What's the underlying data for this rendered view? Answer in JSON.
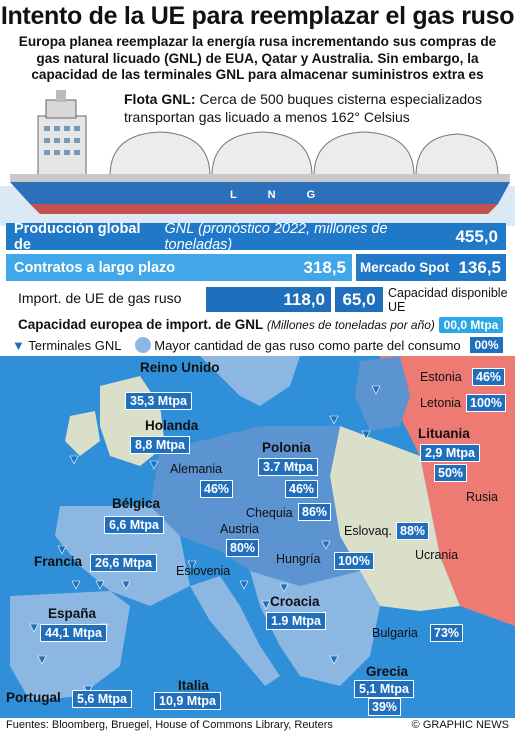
{
  "title": "Intento de la UE para reemplazar el gas ruso",
  "subtitle": "Europa planea reemplazar la energía rusa incrementando sus compras de gas natural licuado (GNL) de EUA, Qatar y Australia. Sin embargo, la capacidad de las terminales GNL para almacenar suministros extra es limitada",
  "fleet": {
    "label": "Flota GNL:",
    "text": "Cerca de 500 buques cisterna especializados transportan gas licuado a menos 162° Celsius",
    "ship_hull_text": "L N G"
  },
  "production": {
    "label": "Producción global de",
    "label_italic": "GNL (pronóstico 2022, millones de toneladas)",
    "value": "455,0"
  },
  "contracts": {
    "long_term_label": "Contratos a largo plazo",
    "long_term_value": "318,5",
    "spot_label": "Mercado Spot",
    "spot_value": "136,5"
  },
  "eu_import": {
    "label": "Import. de UE de gas ruso",
    "value": "118,0",
    "available_value": "65,0",
    "available_label": "Capacidad disponible UE"
  },
  "legend": {
    "title": "Capacidad europea de import. de GNL",
    "title_unit": "(Millones de toneladas por año)",
    "capacity_sample": "00,0 Mtpa",
    "terminals_label": "Terminales GNL",
    "share_label": "Mayor cantidad de gas ruso como parte del consumo",
    "share_sample": "00%"
  },
  "countries": {
    "uk": {
      "name": "Reino Unido",
      "capacity": "35,3 Mtpa"
    },
    "netherlands": {
      "name": "Holanda",
      "capacity": "8,8 Mtpa"
    },
    "belgium": {
      "name": "Bélgica",
      "capacity": "6,6 Mtpa"
    },
    "france": {
      "name": "Francia",
      "capacity": "26,6 Mtpa"
    },
    "spain": {
      "name": "España",
      "capacity": "44,1 Mtpa"
    },
    "portugal": {
      "name": "Portugal",
      "capacity": "5,6 Mtpa"
    },
    "italy": {
      "name": "Italia",
      "capacity": "10,9 Mtpa"
    },
    "germany": {
      "name": "Alemania",
      "share": "46%"
    },
    "poland": {
      "name": "Polonia",
      "capacity": "3.7 Mtpa",
      "share": "46%"
    },
    "czechia": {
      "name": "Chequia",
      "share": "86%"
    },
    "austria": {
      "name": "Austria",
      "share": "80%"
    },
    "slovakia": {
      "name": "Eslovaq.",
      "share": "88%"
    },
    "hungary": {
      "name": "Hungría",
      "share": "100%"
    },
    "slovenia": {
      "name": "Eslovenia"
    },
    "croatia": {
      "name": "Croacia",
      "capacity": "1.9 Mtpa"
    },
    "bulgaria": {
      "name": "Bulgaria",
      "share": "73%"
    },
    "greece": {
      "name": "Grecia",
      "capacity": "5,1 Mtpa",
      "share": "39%"
    },
    "estonia": {
      "name": "Estonia",
      "share": "46%"
    },
    "latvia": {
      "name": "Letonia",
      "share": "100%"
    },
    "lithuania": {
      "name": "Lituania",
      "capacity": "2,9 Mtpa",
      "share": "50%"
    },
    "ukraine": {
      "name": "Ucrania"
    },
    "russia": {
      "name": "Rusia"
    }
  },
  "footer": {
    "sources": "Fuentes: Bloomberg, Bruegel, House of Commons Library, Reuters",
    "credit": "© GRAPHIC NEWS"
  },
  "colors": {
    "sea": "#2f8fd8",
    "land_eu": "#8db7e3",
    "land_dark": "#5c93d1",
    "land_other": "#d9dfc9",
    "russia": "#ee7a74",
    "tag_blue": "#1f6fbd",
    "light_blue": "#42a7e8"
  }
}
